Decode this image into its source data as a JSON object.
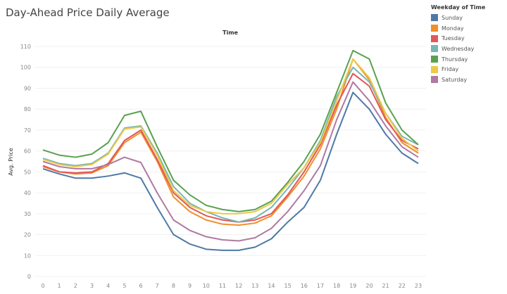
{
  "chart_data": {
    "type": "line",
    "title": "Day-Ahead Price Daily Average",
    "top_axis_label": "Time",
    "xlabel": "",
    "ylabel": "Avg. Price",
    "ylim": [
      0,
      110
    ],
    "yticks": [
      0,
      10,
      20,
      30,
      40,
      50,
      60,
      70,
      80,
      90,
      100,
      110
    ],
    "x": [
      0,
      1,
      2,
      3,
      4,
      5,
      6,
      7,
      8,
      9,
      10,
      11,
      12,
      13,
      14,
      15,
      16,
      17,
      18,
      19,
      20,
      21,
      22,
      23
    ],
    "grid": true,
    "legend": {
      "title": "Weekday of Time",
      "placement": "right"
    },
    "series": [
      {
        "name": "Sunday",
        "color": "#4e79a7",
        "values": [
          51.5,
          49,
          47,
          47,
          48,
          49.5,
          47,
          33,
          20,
          15.5,
          13,
          12.5,
          12.5,
          14,
          18,
          26,
          33,
          46,
          68,
          88,
          80,
          68,
          59,
          54
        ]
      },
      {
        "name": "Monday",
        "color": "#f28e2b",
        "values": [
          52.5,
          50,
          49,
          49.5,
          53,
          64,
          69,
          55,
          38,
          31,
          27,
          25,
          24.5,
          25.5,
          29,
          38,
          48,
          61,
          80,
          104,
          94,
          76,
          64,
          59
        ]
      },
      {
        "name": "Tuesday",
        "color": "#e15759",
        "values": [
          53,
          50,
          49.5,
          50,
          54,
          65,
          70,
          56,
          40,
          33,
          29,
          27,
          26,
          27,
          30,
          39,
          50,
          63,
          82,
          97,
          91,
          75,
          65,
          61
        ]
      },
      {
        "name": "Wednesday",
        "color": "#76b7b2",
        "values": [
          56.5,
          54,
          53,
          54,
          59,
          71,
          72,
          59,
          43,
          35,
          31,
          28,
          26,
          28,
          33,
          42,
          52,
          65,
          86,
          100,
          93,
          78,
          67,
          63
        ]
      },
      {
        "name": "Thursday",
        "color": "#59a14f",
        "values": [
          60.5,
          58,
          57,
          58.5,
          64,
          77,
          79,
          62,
          46,
          39,
          34,
          32,
          31,
          32,
          36,
          45,
          55,
          68,
          88,
          108,
          104,
          83,
          70,
          63
        ]
      },
      {
        "name": "Friday",
        "color": "#edc948",
        "values": [
          56,
          53.5,
          52.5,
          53.5,
          58.5,
          70.5,
          71.5,
          58,
          41,
          34,
          31,
          30,
          30,
          31,
          35,
          44,
          52,
          64,
          84,
          104,
          95,
          78,
          66,
          60
        ]
      },
      {
        "name": "Saturday",
        "color": "#b07aa1",
        "values": [
          55,
          52.5,
          51.5,
          51.5,
          53.5,
          57,
          54.5,
          40,
          27,
          22,
          19,
          17.5,
          17,
          18.5,
          23,
          31,
          41,
          53,
          75,
          93,
          84,
          72,
          62,
          57
        ]
      }
    ]
  }
}
